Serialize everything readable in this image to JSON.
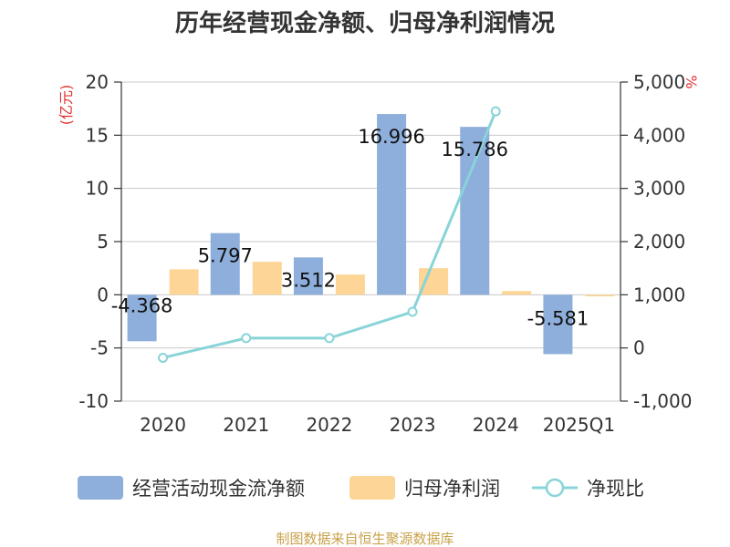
{
  "chart_data": {
    "type": "bar",
    "title": "历年经营现金净额、归母净利润情况",
    "categories": [
      "2020",
      "2021",
      "2022",
      "2023",
      "2024",
      "2025Q1"
    ],
    "left_unit": "(亿元)",
    "right_unit": "%",
    "ylim_left": [
      -10,
      20
    ],
    "yticks_left": [
      "-10",
      "-5",
      "0",
      "5",
      "10",
      "15",
      "20"
    ],
    "ylim_right": [
      -1000,
      5000
    ],
    "yticks_right": [
      "-1,000",
      "0",
      "1,000",
      "2,000",
      "3,000",
      "4,000",
      "5,000"
    ],
    "grid": true,
    "legend_position": "bottom",
    "series": [
      {
        "name": "经营活动现金流净额",
        "type": "bar",
        "axis": "left",
        "color": "#8eaedb",
        "values": [
          -4.368,
          5.797,
          3.512,
          16.996,
          15.786,
          -5.581
        ],
        "labels": [
          "-4.368",
          "5.797",
          "3.512",
          "16.996",
          "15.786",
          "-5.581"
        ]
      },
      {
        "name": "归母净利润",
        "type": "bar",
        "axis": "left",
        "color": "#fdd697",
        "values": [
          2.4,
          3.1,
          1.9,
          2.5,
          0.35,
          -0.15
        ]
      },
      {
        "name": "净现比",
        "type": "line",
        "axis": "right",
        "color": "#88d4d8",
        "values": [
          -185,
          185,
          185,
          680,
          4450,
          null
        ]
      }
    ]
  },
  "footer": {
    "source": "制图数据来自恒生聚源数据库",
    "source_color": "#c8a24a",
    "unit_color": "#e03030"
  }
}
